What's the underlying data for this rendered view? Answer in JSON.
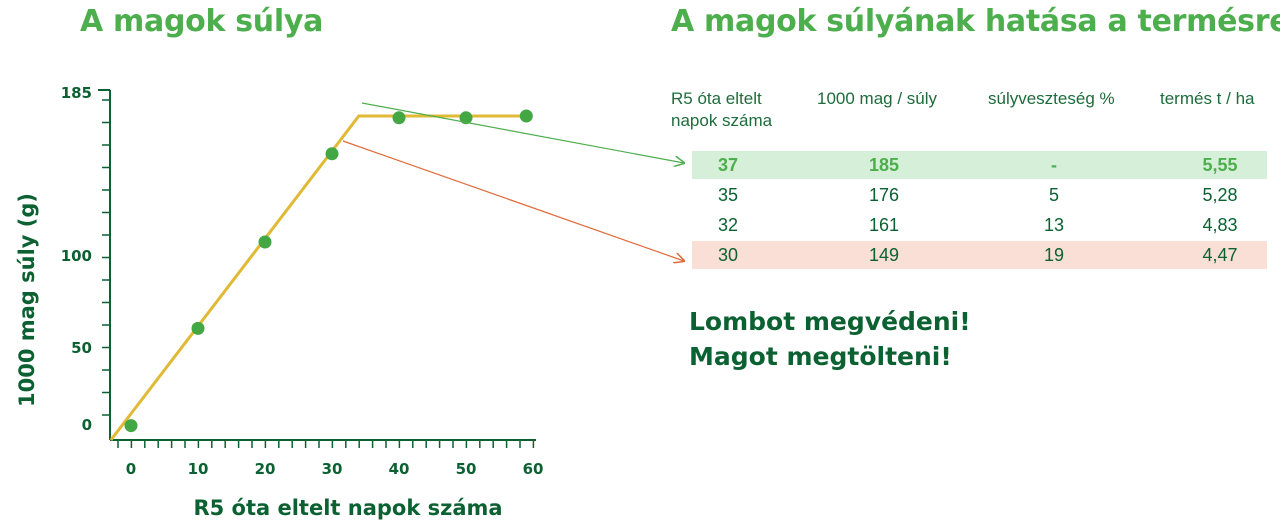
{
  "left_title": "A magok súlya",
  "right_title": "A magok súlyának hatása a termésre",
  "chart_data": {
    "type": "line",
    "xlabel": "R5 óta eltelt napok száma",
    "ylabel": "1000 mag súly (g)",
    "x_ticks": [
      0,
      10,
      20,
      30,
      40,
      50,
      60
    ],
    "y_ticks": [
      0,
      50,
      100,
      185
    ],
    "xlim": [
      -3,
      60
    ],
    "ylim": [
      0,
      185
    ],
    "series": [
      {
        "line": [
          {
            "x": -3,
            "y": 0
          },
          {
            "x": 34,
            "y": 180
          },
          {
            "x": 59,
            "y": 180
          }
        ],
        "points": [
          {
            "x": 0,
            "y": 8
          },
          {
            "x": 10,
            "y": 62
          },
          {
            "x": 20,
            "y": 110
          },
          {
            "x": 30,
            "y": 159
          },
          {
            "x": 40,
            "y": 179
          },
          {
            "x": 50,
            "y": 179
          },
          {
            "x": 59,
            "y": 180
          }
        ]
      }
    ],
    "colors": {
      "line": "#e0b935",
      "points": "#43a843",
      "axis": "#0c6132",
      "arrow_green": "#4cae4c",
      "arrow_red": "#e06a3a"
    }
  },
  "table": {
    "headers": [
      "R5 óta eltelt\nnapok száma",
      "1000 mag / súly",
      "súlyveszteség %",
      "termés t / ha"
    ],
    "rows": [
      {
        "cells": [
          "37",
          "185",
          "-",
          "5,55"
        ],
        "highlight": "green"
      },
      {
        "cells": [
          "35",
          "176",
          "5",
          "5,28"
        ],
        "highlight": "none"
      },
      {
        "cells": [
          "32",
          "161",
          "13",
          "4,83"
        ],
        "highlight": "none"
      },
      {
        "cells": [
          "30",
          "149",
          "19",
          "4,47"
        ],
        "highlight": "red"
      }
    ]
  },
  "slogans": [
    "Lombot megvédeni!",
    "Magot megtölteni!"
  ]
}
